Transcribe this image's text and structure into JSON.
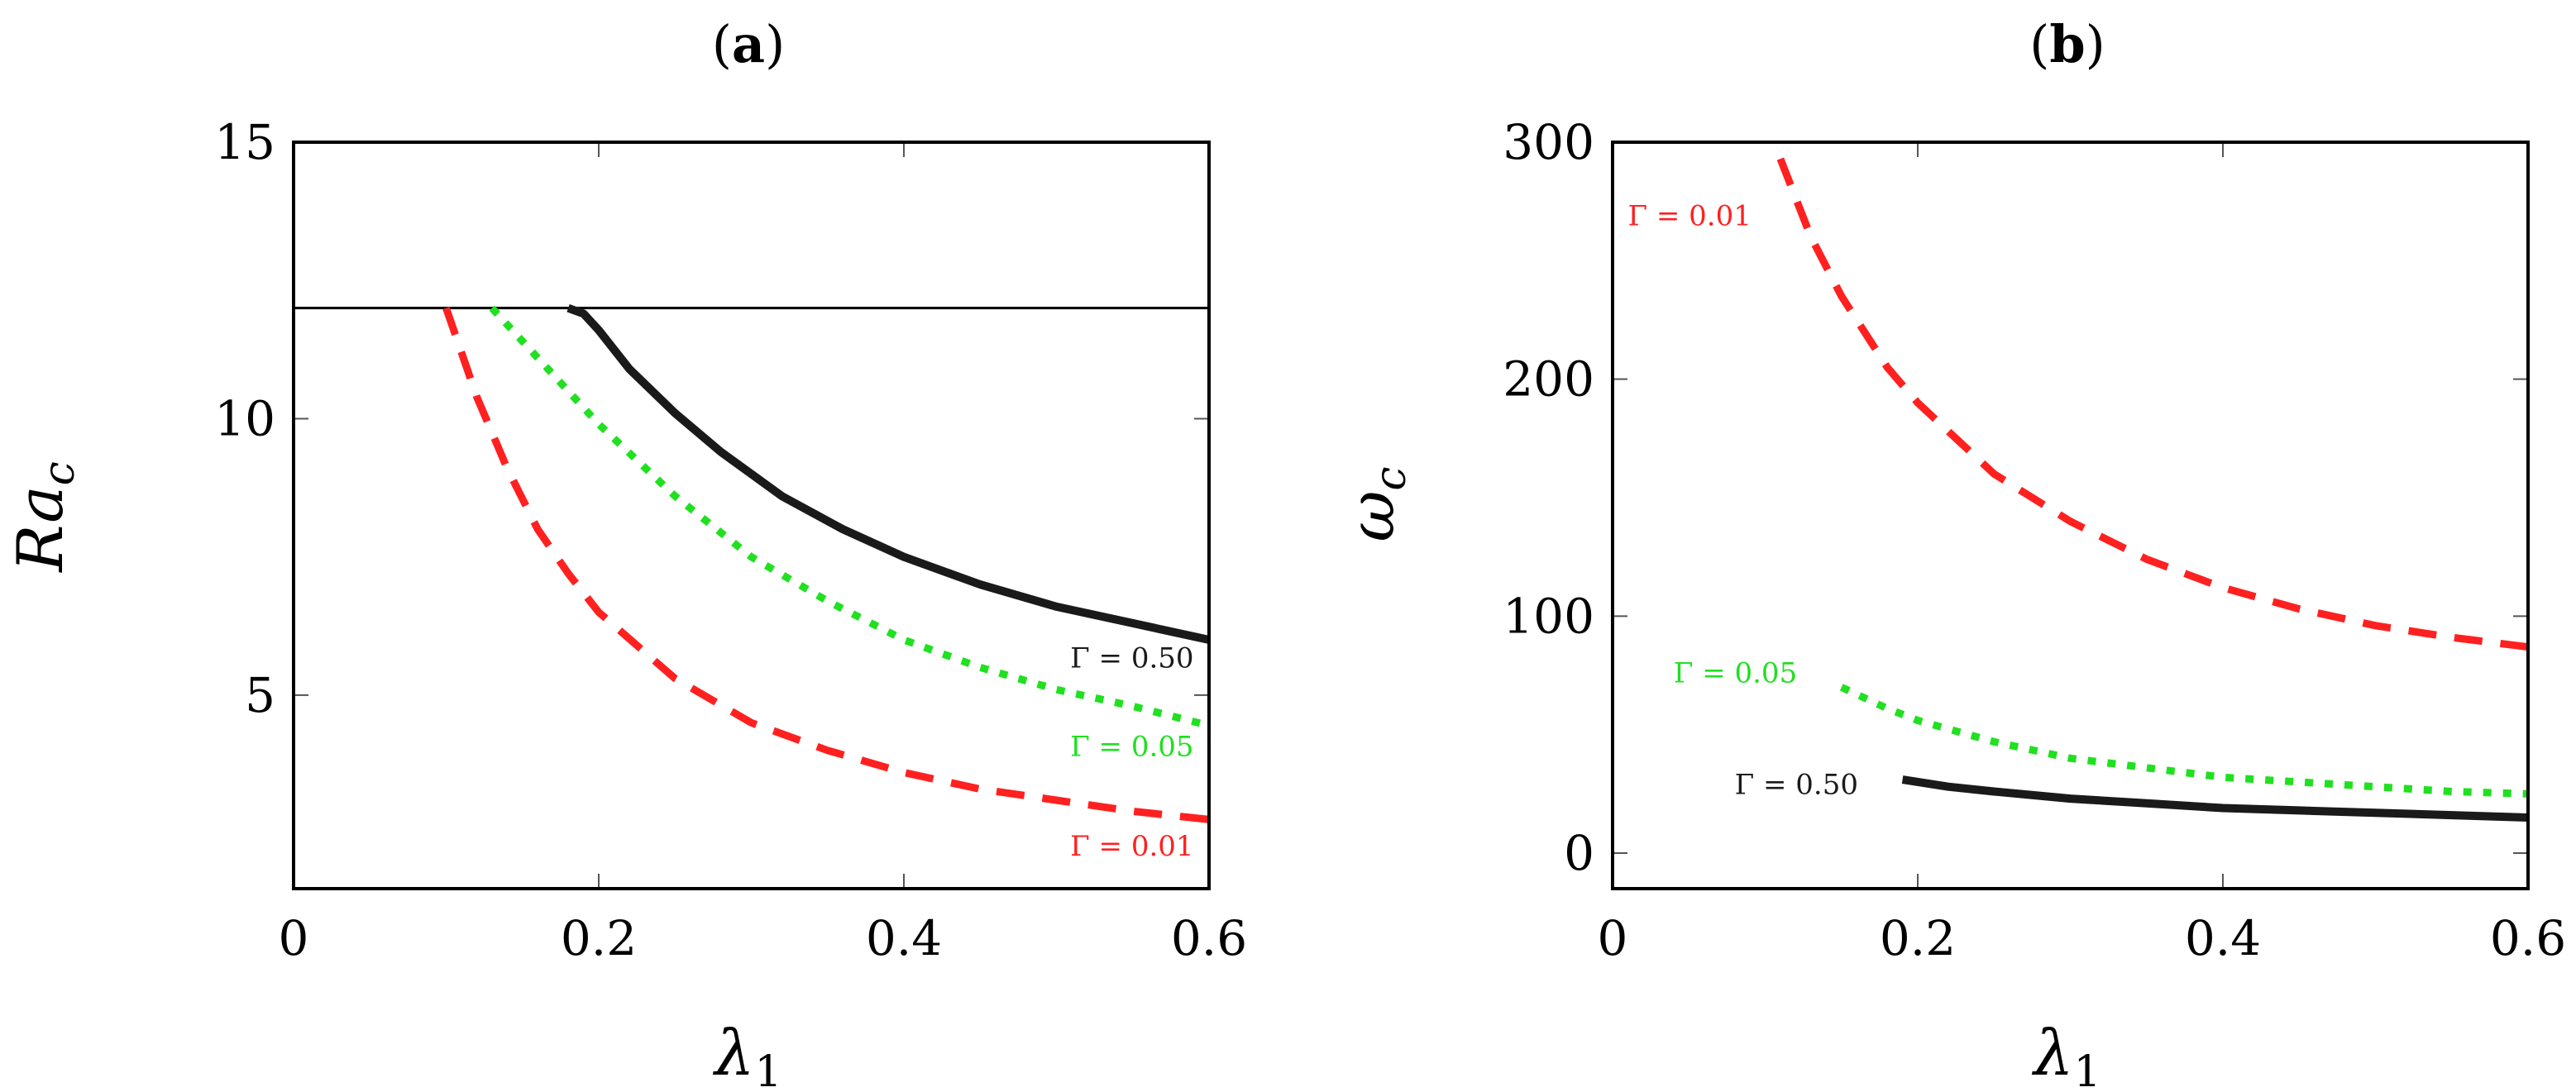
{
  "chart_data": [
    {
      "type": "line",
      "title": "(a)",
      "title_bold_part": "a",
      "xlabel": "λ",
      "xlabel_sub": "1",
      "ylabel": "Ra",
      "ylabel_sub": "c",
      "xlim": [
        0,
        0.6
      ],
      "ylim": [
        1.5,
        15
      ],
      "xticks": [
        0,
        0.2,
        0.4,
        0.6
      ],
      "xtick_labels": [
        "0",
        "0.2",
        "0.4",
        "0.6"
      ],
      "yticks": [
        5,
        10,
        15
      ],
      "ytick_labels": [
        "5",
        "10",
        "15"
      ],
      "reference_line": {
        "y": 12
      },
      "series": [
        {
          "name": "Γ = 0.01",
          "color": "#ff2020",
          "style": "dashed",
          "x": [
            0.1,
            0.12,
            0.14,
            0.16,
            0.18,
            0.2,
            0.25,
            0.3,
            0.35,
            0.4,
            0.45,
            0.5,
            0.55,
            0.6
          ],
          "y": [
            12.0,
            10.4,
            9.1,
            8.0,
            7.2,
            6.5,
            5.3,
            4.5,
            4.0,
            3.6,
            3.3,
            3.1,
            2.9,
            2.75
          ]
        },
        {
          "name": "Γ = 0.05",
          "color": "#20e020",
          "style": "dotted",
          "x": [
            0.13,
            0.15,
            0.18,
            0.2,
            0.25,
            0.3,
            0.35,
            0.4,
            0.45,
            0.5,
            0.55,
            0.6
          ],
          "y": [
            12.0,
            11.4,
            10.5,
            9.9,
            8.6,
            7.5,
            6.7,
            6.0,
            5.5,
            5.1,
            4.8,
            4.45
          ]
        },
        {
          "name": "Γ = 0.50",
          "color": "#1a1a1a",
          "style": "solid",
          "x": [
            0.18,
            0.19,
            0.2,
            0.22,
            0.25,
            0.28,
            0.32,
            0.36,
            0.4,
            0.45,
            0.5,
            0.55,
            0.6
          ],
          "y": [
            12.0,
            11.9,
            11.6,
            10.9,
            10.1,
            9.4,
            8.6,
            8.0,
            7.5,
            7.0,
            6.6,
            6.3,
            6.0
          ]
        }
      ],
      "annotations": [
        {
          "text": "Γ = 0.50",
          "color": "#1a1a1a",
          "x": 0.59,
          "y": 5.5
        },
        {
          "text": "Γ = 0.05",
          "color": "#20e020",
          "x": 0.59,
          "y": 3.9
        },
        {
          "text": "Γ = 0.01",
          "color": "#ff2020",
          "x": 0.59,
          "y": 2.1
        }
      ]
    },
    {
      "type": "line",
      "title": "(b)",
      "title_bold_part": "b",
      "xlabel": "λ",
      "xlabel_sub": "1",
      "ylabel": "ω",
      "ylabel_sub": "c",
      "xlim": [
        0,
        0.6
      ],
      "ylim": [
        -15,
        300
      ],
      "xticks": [
        0,
        0.2,
        0.4,
        0.6
      ],
      "xtick_labels": [
        "0",
        "0.2",
        "0.4",
        "0.6"
      ],
      "yticks": [
        0,
        100,
        200,
        300
      ],
      "ytick_labels": [
        "0",
        "100",
        "200",
        "300"
      ],
      "series": [
        {
          "name": "Γ = 0.01",
          "color": "#ff2020",
          "style": "dashed",
          "x": [
            0.11,
            0.13,
            0.15,
            0.18,
            0.2,
            0.25,
            0.3,
            0.35,
            0.4,
            0.45,
            0.5,
            0.55,
            0.6
          ],
          "y": [
            293,
            260,
            235,
            205,
            190,
            160,
            140,
            124,
            112,
            103,
            96,
            91,
            87
          ]
        },
        {
          "name": "Γ = 0.05",
          "color": "#20e020",
          "style": "dotted",
          "x": [
            0.15,
            0.18,
            0.2,
            0.25,
            0.3,
            0.35,
            0.4,
            0.45,
            0.5,
            0.55,
            0.6
          ],
          "y": [
            70,
            61,
            56,
            47,
            40,
            36,
            32,
            30,
            28,
            26,
            25
          ]
        },
        {
          "name": "Γ = 0.50",
          "color": "#1a1a1a",
          "style": "solid",
          "x": [
            0.19,
            0.22,
            0.25,
            0.3,
            0.35,
            0.4,
            0.45,
            0.5,
            0.55,
            0.6
          ],
          "y": [
            31,
            28,
            26,
            23,
            21,
            19,
            18,
            17,
            16,
            15
          ]
        }
      ],
      "annotations": [
        {
          "text": "Γ = 0.01",
          "color": "#ff2020",
          "x": 0.01,
          "y": 265
        },
        {
          "text": "Γ = 0.05",
          "color": "#20e020",
          "x": 0.04,
          "y": 72
        },
        {
          "text": "Γ = 0.50",
          "color": "#1a1a1a",
          "x": 0.08,
          "y": 25
        }
      ]
    }
  ]
}
